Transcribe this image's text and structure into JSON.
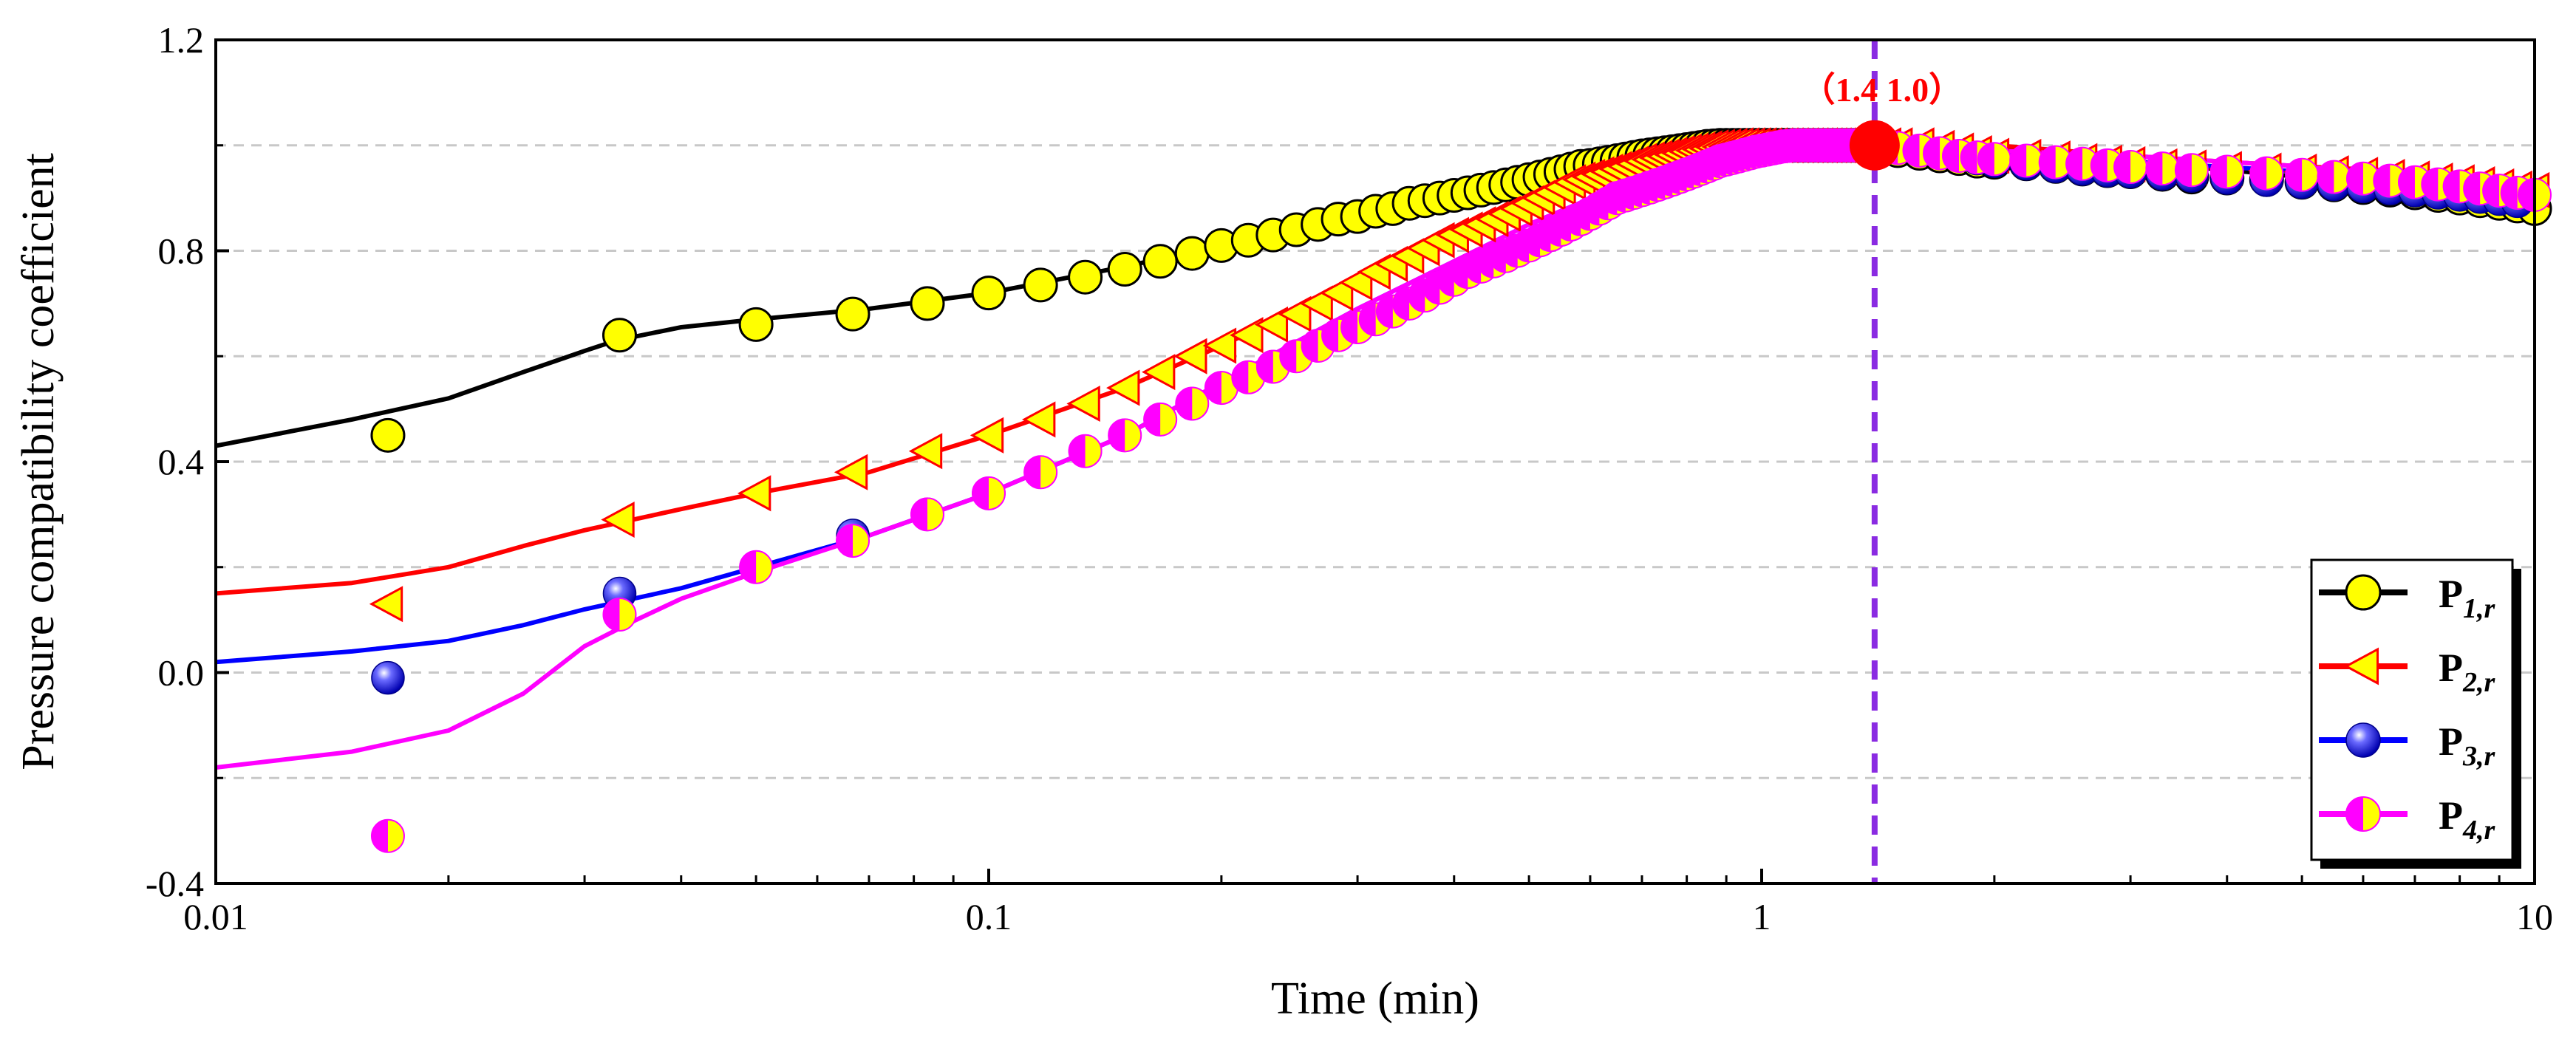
{
  "chart_data": {
    "type": "line",
    "xlabel": "Time (min)",
    "ylabel": "Pressure compatibility coefficient",
    "xscale": "log",
    "xlim": [
      0.01,
      10
    ],
    "ylim": [
      -0.4,
      1.2
    ],
    "x_ticks": [
      0.01,
      0.1,
      1,
      10
    ],
    "x_tick_labels": [
      "0.01",
      "0.1",
      "1",
      "10"
    ],
    "y_ticks": [
      -0.4,
      0.0,
      0.4,
      0.8,
      1.2
    ],
    "y_tick_labels": [
      "-0.4",
      "0.0",
      "0.4",
      "0.8",
      "1.2"
    ],
    "y_gridlines": [
      -0.2,
      0.0,
      0.2,
      0.4,
      0.6,
      0.8,
      1.0
    ],
    "legend_position": "bottom-right",
    "colors": {
      "grid": "#c8c8c8",
      "vline": "#8a2be2",
      "annotation": "#ff0000",
      "marker_face": "#ffff00"
    },
    "annotation": {
      "text": "（1.4 1.0）",
      "x": 1.4,
      "y": 1.0,
      "color": "#ff0000"
    },
    "vertical_line_x": 1.4,
    "marker_x": [
      0.0167,
      0.0333,
      0.05,
      0.0667,
      0.0833,
      0.1,
      0.1167,
      0.1333,
      0.15,
      0.1667,
      0.1833,
      0.2,
      0.2167,
      0.2333,
      0.25,
      0.2667,
      0.2833,
      0.3,
      0.3167,
      0.3333,
      0.35,
      0.3667,
      0.3833,
      0.4,
      0.4167,
      0.4333,
      0.45,
      0.4667,
      0.4833,
      0.5,
      0.5167,
      0.5333,
      0.55,
      0.5667,
      0.5833,
      0.6,
      0.6167,
      0.6333,
      0.65,
      0.6667,
      0.6833,
      0.7,
      0.7167,
      0.7333,
      0.75,
      0.7667,
      0.7833,
      0.8,
      0.8167,
      0.8333,
      0.85,
      0.8667,
      0.8833,
      0.9,
      0.9167,
      0.9333,
      0.95,
      0.9667,
      0.9833,
      1.0,
      1.0167,
      1.0333,
      1.05,
      1.0667,
      1.0833,
      1.1,
      1.1167,
      1.1333,
      1.15,
      1.1667,
      1.1833,
      1.2,
      1.2167,
      1.2333,
      1.25,
      1.2667,
      1.2833,
      1.3,
      1.3167,
      1.3333,
      1.35,
      1.3667,
      1.3833,
      1.4,
      1.45,
      1.5,
      1.6,
      1.7,
      1.8,
      1.9,
      2.0,
      2.2,
      2.4,
      2.6,
      2.8,
      3.0,
      3.3,
      3.6,
      4.0,
      4.5,
      5.0,
      5.5,
      6.0,
      6.5,
      7.0,
      7.5,
      8.0,
      8.5,
      9.0,
      9.5,
      10.0
    ],
    "series": [
      {
        "name": "P1,r",
        "label_main": "P",
        "label_sub": "1,r",
        "line_color": "#000000",
        "marker": "circle",
        "line_x": [
          0.01,
          0.015,
          0.02,
          0.025,
          0.03,
          0.033,
          0.04,
          0.05,
          0.07,
          0.1,
          0.15,
          0.2,
          0.3,
          0.5,
          0.7,
          1.0,
          1.4,
          2,
          3,
          5,
          7,
          10
        ],
        "line_y": [
          0.43,
          0.48,
          0.52,
          0.57,
          0.61,
          0.63,
          0.655,
          0.67,
          0.69,
          0.72,
          0.77,
          0.81,
          0.87,
          0.95,
          0.995,
          1.02,
          1.02,
          1.0,
          0.97,
          0.94,
          0.91,
          0.86
        ],
        "marker_y": [
          0.45,
          0.64,
          0.66,
          0.68,
          0.7,
          0.72,
          0.735,
          0.75,
          0.765,
          0.78,
          0.795,
          0.81,
          0.82,
          0.83,
          0.84,
          0.85,
          0.86,
          0.865,
          0.875,
          0.88,
          0.89,
          0.895,
          0.9,
          0.905,
          0.91,
          0.915,
          0.92,
          0.925,
          0.93,
          0.935,
          0.94,
          0.945,
          0.95,
          0.955,
          0.96,
          0.962,
          0.965,
          0.968,
          0.971,
          0.974,
          0.977,
          0.98,
          0.982,
          0.984,
          0.986,
          0.988,
          0.99,
          0.992,
          0.994,
          0.996,
          0.998,
          0.999,
          1.0,
          1.0,
          1.0,
          1.0,
          1.0,
          1.0,
          1.0,
          1.0,
          1.0,
          1.0,
          1.0,
          1.0,
          1.0,
          1.0,
          1.0,
          1.0,
          1.0,
          1.0,
          1.0,
          1.0,
          1.0,
          1.0,
          1.0,
          1.0,
          1.0,
          1.0,
          1.0,
          1.0,
          1.0,
          1.0,
          1.0,
          1.0,
          0.995,
          0.99,
          0.985,
          0.98,
          0.975,
          0.97,
          0.968,
          0.965,
          0.96,
          0.955,
          0.952,
          0.95,
          0.945,
          0.94,
          0.938,
          0.935,
          0.93,
          0.925,
          0.92,
          0.915,
          0.91,
          0.905,
          0.9,
          0.895,
          0.89,
          0.885,
          0.88
        ]
      },
      {
        "name": "P2,r",
        "label_main": "P",
        "label_sub": "2,r",
        "line_color": "#ff0000",
        "marker": "triangle-left",
        "line_x": [
          0.01,
          0.015,
          0.02,
          0.025,
          0.03,
          0.04,
          0.05,
          0.07,
          0.1,
          0.15,
          0.2,
          0.3,
          0.5,
          0.7,
          1.0,
          1.4,
          2,
          3,
          5,
          7,
          10
        ],
        "line_y": [
          0.15,
          0.17,
          0.2,
          0.24,
          0.27,
          0.31,
          0.34,
          0.38,
          0.45,
          0.54,
          0.62,
          0.74,
          0.88,
          0.96,
          1.01,
          1.02,
          1.0,
          0.98,
          0.96,
          0.95,
          0.92
        ],
        "marker_y": [
          0.13,
          0.29,
          0.34,
          0.38,
          0.42,
          0.45,
          0.48,
          0.51,
          0.54,
          0.57,
          0.6,
          0.62,
          0.64,
          0.66,
          0.68,
          0.7,
          0.72,
          0.74,
          0.76,
          0.775,
          0.79,
          0.805,
          0.82,
          0.83,
          0.84,
          0.85,
          0.86,
          0.87,
          0.88,
          0.89,
          0.9,
          0.91,
          0.92,
          0.93,
          0.935,
          0.94,
          0.945,
          0.95,
          0.955,
          0.96,
          0.965,
          0.97,
          0.973,
          0.976,
          0.979,
          0.982,
          0.985,
          0.988,
          0.99,
          0.992,
          0.994,
          0.996,
          0.997,
          0.998,
          0.999,
          1.0,
          1.0,
          1.0,
          1.0,
          1.0,
          1.0,
          1.0,
          1.0,
          1.0,
          1.0,
          1.0,
          1.0,
          1.0,
          1.0,
          1.0,
          1.0,
          1.0,
          1.0,
          1.0,
          1.0,
          1.0,
          1.0,
          1.0,
          1.0,
          1.0,
          1.0,
          1.0,
          1.0,
          1.0,
          1.0,
          1.0,
          1.0,
          0.995,
          0.99,
          0.985,
          0.98,
          0.978,
          0.975,
          0.97,
          0.967,
          0.964,
          0.96,
          0.958,
          0.955,
          0.952,
          0.95,
          0.947,
          0.944,
          0.94,
          0.937,
          0.933,
          0.93,
          0.926,
          0.922,
          0.918,
          0.915
        ]
      },
      {
        "name": "P3,r",
        "label_main": "P",
        "label_sub": "3,r",
        "line_color": "#0000ff",
        "marker": "ball",
        "line_x": [
          0.01,
          0.015,
          0.02,
          0.025,
          0.03,
          0.04,
          0.05,
          0.07,
          0.1,
          0.15,
          0.2,
          0.3,
          0.5,
          0.7,
          1.0,
          1.4,
          2,
          3,
          5,
          7,
          10
        ],
        "line_y": [
          0.02,
          0.04,
          0.06,
          0.09,
          0.12,
          0.16,
          0.2,
          0.26,
          0.34,
          0.45,
          0.55,
          0.69,
          0.85,
          0.94,
          1.0,
          1.0,
          0.99,
          0.97,
          0.95,
          0.93,
          0.9
        ],
        "marker_y": [
          -0.01,
          0.15,
          0.2,
          0.26,
          0.3,
          0.34,
          0.38,
          0.42,
          0.45,
          0.48,
          0.51,
          0.54,
          0.56,
          0.58,
          0.6,
          0.62,
          0.64,
          0.655,
          0.67,
          0.685,
          0.7,
          0.715,
          0.73,
          0.745,
          0.76,
          0.77,
          0.78,
          0.79,
          0.8,
          0.81,
          0.82,
          0.83,
          0.84,
          0.85,
          0.86,
          0.87,
          0.88,
          0.89,
          0.9,
          0.905,
          0.91,
          0.915,
          0.92,
          0.925,
          0.93,
          0.935,
          0.94,
          0.945,
          0.95,
          0.955,
          0.96,
          0.965,
          0.97,
          0.973,
          0.976,
          0.979,
          0.982,
          0.985,
          0.988,
          0.99,
          0.992,
          0.994,
          0.996,
          0.998,
          0.999,
          1.0,
          1.0,
          1.0,
          1.0,
          1.0,
          1.0,
          1.0,
          1.0,
          1.0,
          1.0,
          1.0,
          1.0,
          1.0,
          1.0,
          1.0,
          1.0,
          1.0,
          1.0,
          1.0,
          1.0,
          0.995,
          0.99,
          0.985,
          0.98,
          0.975,
          0.97,
          0.965,
          0.96,
          0.955,
          0.952,
          0.95,
          0.946,
          0.942,
          0.938,
          0.934,
          0.93,
          0.926,
          0.922,
          0.918,
          0.914,
          0.91,
          0.906,
          0.902,
          0.898,
          0.894
        ]
      },
      {
        "name": "P4,r",
        "label_main": "P",
        "label_sub": "4,r",
        "line_color": "#ff00ff",
        "marker": "half-circle",
        "line_x": [
          0.01,
          0.015,
          0.02,
          0.025,
          0.03,
          0.035,
          0.04,
          0.05,
          0.07,
          0.1,
          0.15,
          0.2,
          0.3,
          0.5,
          0.7,
          1.0,
          1.4,
          2,
          3,
          5,
          7,
          10
        ],
        "line_y": [
          -0.18,
          -0.15,
          -0.11,
          -0.04,
          0.05,
          0.1,
          0.14,
          0.19,
          0.26,
          0.34,
          0.45,
          0.55,
          0.69,
          0.85,
          0.94,
          1.0,
          1.0,
          0.99,
          0.98,
          0.96,
          0.94,
          0.91
        ],
        "marker_y": [
          -0.31,
          0.11,
          0.2,
          0.25,
          0.3,
          0.34,
          0.38,
          0.42,
          0.45,
          0.48,
          0.51,
          0.54,
          0.56,
          0.58,
          0.6,
          0.62,
          0.64,
          0.655,
          0.67,
          0.685,
          0.7,
          0.715,
          0.73,
          0.745,
          0.76,
          0.77,
          0.78,
          0.79,
          0.8,
          0.81,
          0.82,
          0.83,
          0.84,
          0.85,
          0.86,
          0.87,
          0.88,
          0.89,
          0.9,
          0.905,
          0.91,
          0.915,
          0.92,
          0.925,
          0.93,
          0.935,
          0.94,
          0.945,
          0.95,
          0.955,
          0.96,
          0.965,
          0.97,
          0.973,
          0.976,
          0.979,
          0.982,
          0.985,
          0.988,
          0.99,
          0.992,
          0.994,
          0.996,
          0.998,
          0.999,
          1.0,
          1.0,
          1.0,
          1.0,
          1.0,
          1.0,
          1.0,
          1.0,
          1.0,
          1.0,
          1.0,
          1.0,
          1.0,
          1.0,
          1.0,
          1.0,
          1.0,
          1.0,
          1.0,
          1.0,
          0.995,
          0.99,
          0.985,
          0.98,
          0.977,
          0.974,
          0.971,
          0.968,
          0.965,
          0.962,
          0.959,
          0.956,
          0.953,
          0.95,
          0.947,
          0.944,
          0.94,
          0.937,
          0.933,
          0.93,
          0.926,
          0.922,
          0.918,
          0.914,
          0.91,
          0.906
        ]
      }
    ]
  }
}
